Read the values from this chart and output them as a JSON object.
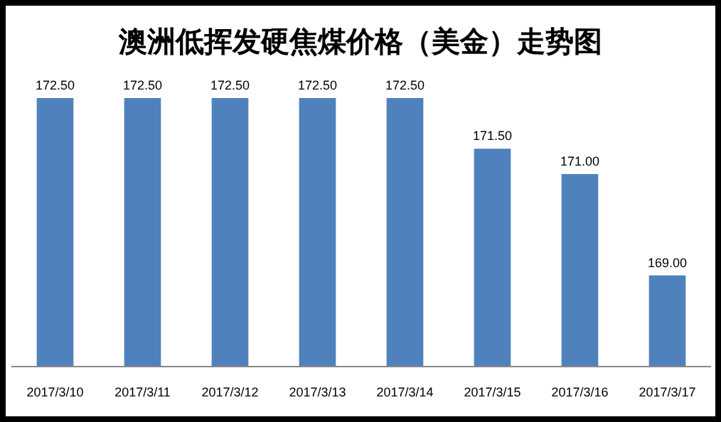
{
  "chart_data": {
    "type": "bar",
    "title": "澳洲低挥发硬焦煤价格（美金）走势图",
    "categories": [
      "2017/3/10",
      "2017/3/11",
      "2017/3/12",
      "2017/3/13",
      "2017/3/14",
      "2017/3/15",
      "2017/3/16",
      "2017/3/17"
    ],
    "values": [
      172.5,
      172.5,
      172.5,
      172.5,
      172.5,
      171.5,
      171.0,
      169.0
    ],
    "value_labels": [
      "172.50",
      "172.50",
      "172.50",
      "172.50",
      "172.50",
      "171.50",
      "171.00",
      "169.00"
    ],
    "color": "#4f81bd",
    "ylim": [
      167.2,
      172.5
    ],
    "tick_labels": "x"
  }
}
